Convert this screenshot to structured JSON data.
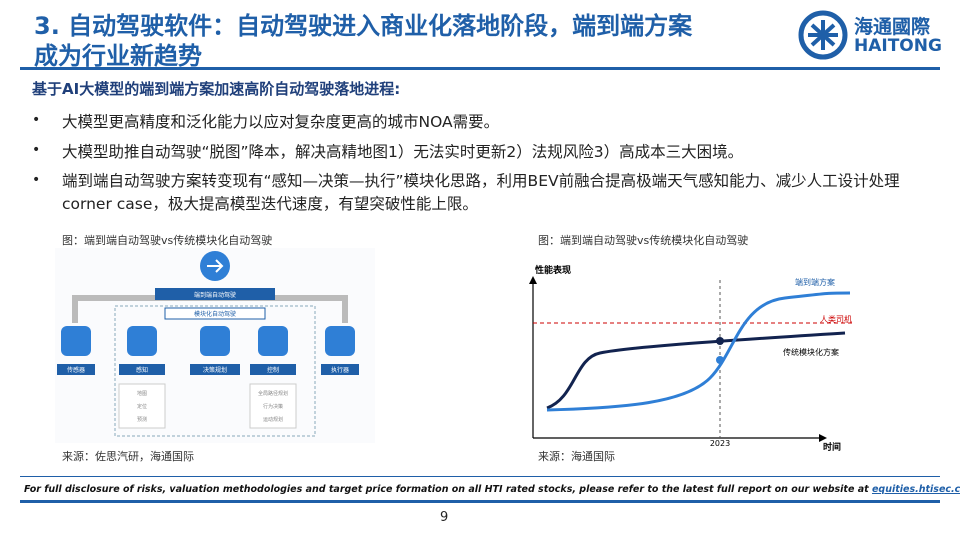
{
  "header": {
    "title_lines": [
      "3. 自动驾驶软件：自动驾驶进入商业化落地阶段，端到端方案",
      "成为行业新趋势"
    ],
    "logo_cn": "海通國際",
    "logo_en": "HAITONG"
  },
  "body": {
    "heading": "基于AI大模型的端到端方案加速高阶自动驾驶落地进程:",
    "bullets": [
      "大模型更高精度和泛化能力以应对复杂度更高的城市NOA需要。",
      "大模型助推自动驾驶“脱图”降本，解决高精地图1）无法实时更新2）法规风险3）高成本三大困境。",
      "端到端自动驾驶方案转变现有“感知—决策—执行”模块化思路，利用BEV前融合提高极端天气感知能力、减少人工设计处理corner case，极大提高模型迭代速度，有望突破性能上限。"
    ]
  },
  "figures": [
    {
      "caption": "图：端到端自动驾驶vs传统模块化自动驾驶",
      "source": "来源：佐思汽研，海通国际",
      "labels": {
        "e2e": "端到端自动驾驶",
        "modular": "模块化自动驾驶",
        "sensor": "传感器",
        "perception": "感知",
        "planning": "决策规划",
        "control": "控制",
        "actuator": "执行器",
        "sub_perception": [
          "地图",
          "定位",
          "预测"
        ],
        "sub_control": [
          "全局路径规划",
          "行为决策",
          "运动规划"
        ]
      }
    },
    {
      "caption": "图：端到端自动驾驶vs传统模块化自动驾驶",
      "source": "来源：海通国际",
      "labels": {
        "y_axis": "性能表现",
        "x_axis": "时间",
        "year": "2023",
        "e2e": "端到端方案",
        "human": "人类司机",
        "modular": "传统模块化方案"
      }
    }
  ],
  "footer": {
    "disclaimer": "For full disclosure of risks, valuation methodologies and target price formation on all HTI rated stocks, please refer to the latest full report on our website at",
    "link": "equities.htisec.com",
    "page": "9"
  }
}
